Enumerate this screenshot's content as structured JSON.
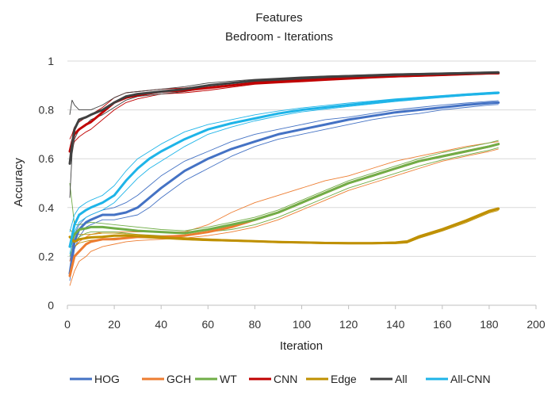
{
  "chart_data": {
    "type": "line",
    "title": "Features",
    "subtitle": "Bedroom - Iterations",
    "xlabel": "Iteration",
    "ylabel": "Accuracy",
    "xlim": [
      0,
      200
    ],
    "ylim": [
      0,
      1
    ],
    "xticks": [
      "0",
      "20",
      "40",
      "60",
      "80",
      "100",
      "120",
      "140",
      "160",
      "180",
      "200"
    ],
    "yticks": [
      "0",
      "0.2",
      "0.4",
      "0.6",
      "0.8",
      "1"
    ],
    "grid": true,
    "legend_position": "bottom",
    "series": [
      {
        "name": "HOG",
        "color": "#4472C4",
        "x": [
          1,
          3,
          5,
          8,
          10,
          15,
          20,
          25,
          30,
          35,
          40,
          50,
          60,
          70,
          80,
          90,
          100,
          110,
          120,
          130,
          140,
          150,
          160,
          170,
          180,
          184
        ],
        "values": [
          0.13,
          0.26,
          0.31,
          0.34,
          0.35,
          0.37,
          0.37,
          0.38,
          0.4,
          0.44,
          0.48,
          0.55,
          0.6,
          0.64,
          0.67,
          0.7,
          0.72,
          0.74,
          0.76,
          0.775,
          0.79,
          0.8,
          0.81,
          0.82,
          0.828,
          0.83
        ],
        "upper": [
          0.18,
          0.29,
          0.33,
          0.36,
          0.37,
          0.39,
          0.4,
          0.42,
          0.45,
          0.49,
          0.53,
          0.59,
          0.63,
          0.67,
          0.7,
          0.72,
          0.74,
          0.76,
          0.77,
          0.785,
          0.8,
          0.81,
          0.82,
          0.828,
          0.835,
          0.838
        ],
        "lower": [
          0.1,
          0.23,
          0.28,
          0.32,
          0.33,
          0.35,
          0.35,
          0.36,
          0.37,
          0.4,
          0.44,
          0.51,
          0.56,
          0.61,
          0.65,
          0.68,
          0.7,
          0.72,
          0.74,
          0.76,
          0.775,
          0.785,
          0.8,
          0.81,
          0.82,
          0.822
        ]
      },
      {
        "name": "GCH",
        "color": "#ED7D31",
        "x": [
          1,
          3,
          5,
          8,
          10,
          15,
          20,
          25,
          30,
          40,
          50,
          60,
          70,
          80,
          90,
          100,
          110,
          120,
          130,
          140,
          150,
          160,
          170,
          180,
          184
        ],
        "values": [
          0.12,
          0.2,
          0.22,
          0.25,
          0.26,
          0.27,
          0.27,
          0.275,
          0.28,
          0.28,
          0.285,
          0.3,
          0.32,
          0.35,
          0.38,
          0.42,
          0.46,
          0.5,
          0.53,
          0.56,
          0.59,
          0.61,
          0.63,
          0.65,
          0.66
        ],
        "upper": [
          0.18,
          0.24,
          0.26,
          0.28,
          0.29,
          0.3,
          0.3,
          0.3,
          0.3,
          0.3,
          0.3,
          0.33,
          0.38,
          0.42,
          0.45,
          0.48,
          0.51,
          0.53,
          0.56,
          0.59,
          0.61,
          0.63,
          0.65,
          0.665,
          0.67
        ],
        "lower": [
          0.08,
          0.14,
          0.18,
          0.2,
          0.22,
          0.24,
          0.25,
          0.26,
          0.265,
          0.27,
          0.275,
          0.285,
          0.3,
          0.32,
          0.35,
          0.39,
          0.43,
          0.47,
          0.5,
          0.53,
          0.56,
          0.59,
          0.61,
          0.63,
          0.64
        ]
      },
      {
        "name": "WT",
        "color": "#70AD47",
        "x": [
          1,
          3,
          5,
          8,
          10,
          15,
          20,
          25,
          30,
          40,
          50,
          60,
          70,
          80,
          90,
          100,
          110,
          120,
          130,
          140,
          150,
          160,
          170,
          180,
          184
        ],
        "values": [
          0.24,
          0.29,
          0.31,
          0.315,
          0.32,
          0.32,
          0.315,
          0.31,
          0.305,
          0.3,
          0.295,
          0.31,
          0.33,
          0.35,
          0.38,
          0.42,
          0.46,
          0.5,
          0.53,
          0.56,
          0.59,
          0.61,
          0.63,
          0.65,
          0.66
        ],
        "upper": [
          0.5,
          0.33,
          0.33,
          0.335,
          0.34,
          0.335,
          0.33,
          0.325,
          0.32,
          0.31,
          0.305,
          0.32,
          0.34,
          0.36,
          0.39,
          0.43,
          0.47,
          0.51,
          0.54,
          0.57,
          0.6,
          0.625,
          0.645,
          0.665,
          0.675
        ],
        "lower": [
          0.2,
          0.26,
          0.28,
          0.295,
          0.3,
          0.3,
          0.3,
          0.295,
          0.29,
          0.285,
          0.285,
          0.3,
          0.31,
          0.33,
          0.36,
          0.4,
          0.44,
          0.48,
          0.51,
          0.54,
          0.57,
          0.595,
          0.615,
          0.635,
          0.645
        ]
      },
      {
        "name": "CNN",
        "color": "#C00000",
        "x": [
          1,
          2,
          3,
          5,
          8,
          10,
          15,
          20,
          25,
          30,
          40,
          50,
          60,
          70,
          80,
          90,
          100,
          110,
          120,
          130,
          140,
          150,
          160,
          170,
          180,
          184
        ],
        "values": [
          0.63,
          0.67,
          0.7,
          0.72,
          0.74,
          0.75,
          0.79,
          0.83,
          0.85,
          0.86,
          0.875,
          0.88,
          0.89,
          0.9,
          0.91,
          0.915,
          0.92,
          0.925,
          0.93,
          0.935,
          0.938,
          0.941,
          0.944,
          0.947,
          0.95,
          0.95
        ],
        "upper": [
          0.68,
          0.7,
          0.73,
          0.75,
          0.77,
          0.78,
          0.81,
          0.85,
          0.87,
          0.875,
          0.885,
          0.89,
          0.9,
          0.908,
          0.915,
          0.92,
          0.925,
          0.93,
          0.935,
          0.94,
          0.943,
          0.946,
          0.949,
          0.951,
          0.953,
          0.954
        ],
        "lower": [
          0.6,
          0.64,
          0.67,
          0.69,
          0.71,
          0.72,
          0.76,
          0.8,
          0.83,
          0.845,
          0.865,
          0.87,
          0.88,
          0.893,
          0.905,
          0.91,
          0.915,
          0.92,
          0.925,
          0.93,
          0.934,
          0.937,
          0.94,
          0.943,
          0.946,
          0.947
        ]
      },
      {
        "name": "Edge",
        "color": "#BF9000",
        "x": [
          1,
          3,
          5,
          8,
          10,
          15,
          20,
          25,
          30,
          40,
          50,
          60,
          70,
          80,
          90,
          100,
          110,
          120,
          130,
          140,
          145,
          150,
          160,
          170,
          180,
          184
        ],
        "values": [
          0.28,
          0.26,
          0.27,
          0.275,
          0.278,
          0.28,
          0.285,
          0.285,
          0.283,
          0.278,
          0.272,
          0.268,
          0.265,
          0.262,
          0.259,
          0.257,
          0.255,
          0.254,
          0.254,
          0.256,
          0.26,
          0.28,
          0.31,
          0.345,
          0.385,
          0.395
        ],
        "upper": [
          0.31,
          0.29,
          0.29,
          0.29,
          0.29,
          0.295,
          0.295,
          0.292,
          0.29,
          0.283,
          0.277,
          0.272,
          0.268,
          0.265,
          0.262,
          0.26,
          0.258,
          0.257,
          0.257,
          0.26,
          0.265,
          0.285,
          0.315,
          0.35,
          0.39,
          0.4
        ],
        "lower": [
          0.24,
          0.24,
          0.255,
          0.262,
          0.266,
          0.27,
          0.275,
          0.278,
          0.277,
          0.273,
          0.268,
          0.264,
          0.262,
          0.259,
          0.256,
          0.254,
          0.252,
          0.251,
          0.251,
          0.252,
          0.255,
          0.274,
          0.304,
          0.338,
          0.378,
          0.388
        ]
      },
      {
        "name": "All",
        "color": "#404040",
        "x": [
          1,
          2,
          3,
          5,
          8,
          10,
          15,
          20,
          25,
          30,
          40,
          50,
          60,
          70,
          80,
          90,
          100,
          110,
          120,
          130,
          140,
          150,
          160,
          170,
          180,
          184
        ],
        "values": [
          0.58,
          0.66,
          0.72,
          0.76,
          0.77,
          0.78,
          0.8,
          0.83,
          0.855,
          0.865,
          0.875,
          0.885,
          0.9,
          0.91,
          0.92,
          0.925,
          0.93,
          0.935,
          0.938,
          0.941,
          0.944,
          0.946,
          0.948,
          0.95,
          0.952,
          0.953
        ],
        "upper": [
          0.78,
          0.84,
          0.82,
          0.8,
          0.8,
          0.8,
          0.82,
          0.85,
          0.87,
          0.875,
          0.885,
          0.895,
          0.91,
          0.918,
          0.925,
          0.93,
          0.935,
          0.939,
          0.942,
          0.945,
          0.948,
          0.95,
          0.952,
          0.954,
          0.956,
          0.957
        ],
        "lower": [
          0.44,
          0.62,
          0.68,
          0.72,
          0.74,
          0.76,
          0.78,
          0.81,
          0.84,
          0.855,
          0.865,
          0.875,
          0.89,
          0.902,
          0.912,
          0.92,
          0.925,
          0.93,
          0.934,
          0.937,
          0.94,
          0.942,
          0.944,
          0.946,
          0.948,
          0.949
        ]
      },
      {
        "name": "All-CNN",
        "color": "#1EB4E8",
        "x": [
          1,
          3,
          5,
          8,
          10,
          15,
          20,
          25,
          30,
          35,
          40,
          50,
          60,
          70,
          80,
          90,
          100,
          110,
          120,
          130,
          140,
          150,
          160,
          170,
          180,
          184
        ],
        "values": [
          0.24,
          0.33,
          0.37,
          0.39,
          0.4,
          0.42,
          0.45,
          0.51,
          0.56,
          0.6,
          0.63,
          0.68,
          0.72,
          0.745,
          0.765,
          0.785,
          0.8,
          0.81,
          0.82,
          0.83,
          0.84,
          0.848,
          0.855,
          0.862,
          0.868,
          0.87
        ],
        "upper": [
          0.3,
          0.37,
          0.4,
          0.42,
          0.43,
          0.45,
          0.49,
          0.55,
          0.6,
          0.63,
          0.66,
          0.71,
          0.74,
          0.76,
          0.78,
          0.795,
          0.808,
          0.818,
          0.828,
          0.836,
          0.845,
          0.852,
          0.859,
          0.866,
          0.872,
          0.874
        ],
        "lower": [
          0.21,
          0.3,
          0.34,
          0.36,
          0.37,
          0.39,
          0.42,
          0.47,
          0.52,
          0.56,
          0.59,
          0.65,
          0.7,
          0.73,
          0.755,
          0.775,
          0.792,
          0.803,
          0.814,
          0.824,
          0.834,
          0.843,
          0.851,
          0.858,
          0.864,
          0.866
        ]
      }
    ]
  }
}
